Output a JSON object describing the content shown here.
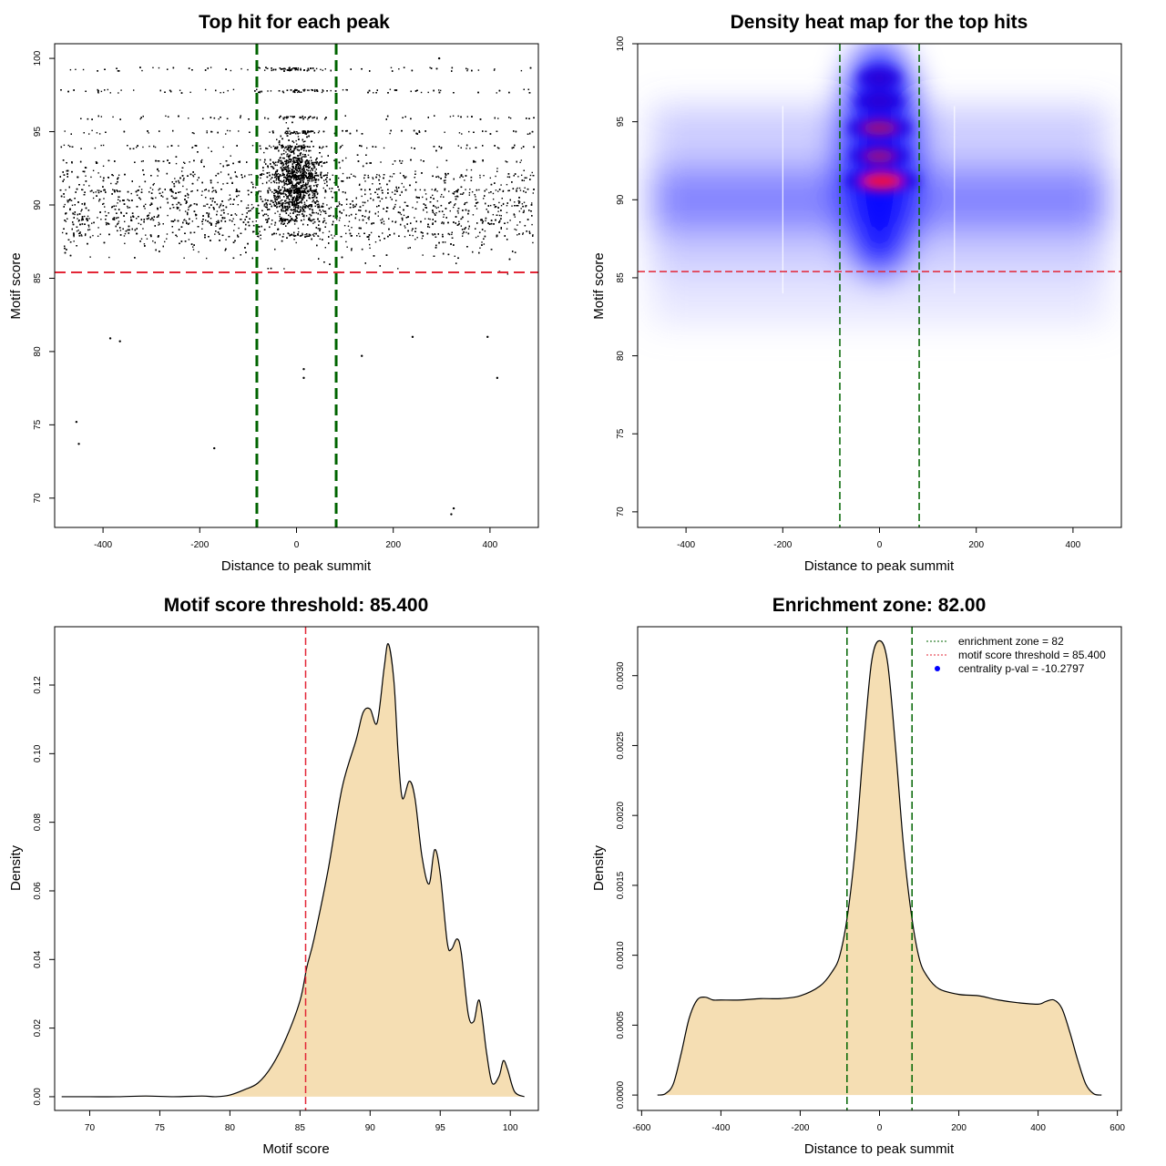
{
  "chart_data": [
    {
      "id": "scatter",
      "type": "scatter",
      "title": "Top hit for each peak",
      "xlabel": "Distance to peak summit",
      "ylabel": "Motif score",
      "xlim": [
        -500,
        500
      ],
      "ylim": [
        68,
        101
      ],
      "xticks": [
        -400,
        -200,
        0,
        200,
        400
      ],
      "yticks": [
        70,
        75,
        80,
        85,
        90,
        95,
        100
      ],
      "xtick_labels": [
        "-400",
        "-200",
        "0",
        "200",
        "400"
      ],
      "ytick_labels": [
        "70",
        "75",
        "80",
        "85",
        "90",
        "95",
        "100"
      ],
      "hline": 85.4,
      "vlines": [
        -82,
        82
      ],
      "points_sample": [
        {
          "x": -455,
          "y": 75.2
        },
        {
          "x": -450,
          "y": 73.7
        },
        {
          "x": -170,
          "y": 73.4
        },
        {
          "x": 325,
          "y": 69.3
        },
        {
          "x": 320,
          "y": 68.9
        },
        {
          "x": 15,
          "y": 78.8
        },
        {
          "x": 15,
          "y": 78.2
        },
        {
          "x": 415,
          "y": 78.2
        },
        {
          "x": 135,
          "y": 79.7
        },
        {
          "x": -365,
          "y": 80.7
        },
        {
          "x": -385,
          "y": 80.9
        },
        {
          "x": 240,
          "y": 81.0
        },
        {
          "x": 395,
          "y": 81.0
        },
        {
          "x": 295,
          "y": 100.0
        }
      ]
    },
    {
      "id": "heatmap",
      "type": "heatmap",
      "title": "Density heat map for the top hits",
      "xlabel": "Distance to peak summit",
      "ylabel": "Motif score",
      "xlim": [
        -500,
        500
      ],
      "ylim": [
        69,
        100
      ],
      "xticks": [
        -400,
        -200,
        0,
        200,
        400
      ],
      "yticks": [
        70,
        75,
        80,
        85,
        90,
        95,
        100
      ],
      "xtick_labels": [
        "-400",
        "-200",
        "0",
        "200",
        "400"
      ],
      "ytick_labels": [
        "70",
        "75",
        "80",
        "85",
        "90",
        "95",
        "100"
      ],
      "hline": 85.4,
      "vlines": [
        -82,
        82
      ],
      "hotspots": [
        {
          "x": 5,
          "y": 91.2,
          "intensity": 1.0
        },
        {
          "x": 0,
          "y": 94.6,
          "intensity": 0.8
        },
        {
          "x": 0,
          "y": 92.8,
          "intensity": 0.7
        },
        {
          "x": 0,
          "y": 96.3,
          "intensity": 0.5
        },
        {
          "x": 0,
          "y": 97.8,
          "intensity": 0.4
        }
      ],
      "colors": [
        "#ffffff",
        "#0000ff",
        "#ff0000"
      ]
    },
    {
      "id": "score_density",
      "type": "area",
      "title": "Motif score threshold: 85.400",
      "xlabel": "Motif score",
      "ylabel": "Density",
      "xlim": [
        67.5,
        102
      ],
      "ylim": [
        -0.004,
        0.137
      ],
      "xticks": [
        70,
        75,
        80,
        85,
        90,
        95,
        100
      ],
      "yticks": [
        0.0,
        0.02,
        0.04,
        0.06,
        0.08,
        0.1,
        0.12
      ],
      "xtick_labels": [
        "70",
        "75",
        "80",
        "85",
        "90",
        "95",
        "100"
      ],
      "ytick_labels": [
        "0.00",
        "0.02",
        "0.04",
        "0.06",
        "0.08",
        "0.10",
        "0.12"
      ],
      "vline": 85.4,
      "fill": "#f5deb3",
      "x": [
        68,
        70,
        72,
        74,
        76,
        78,
        79,
        80,
        81,
        82,
        83,
        84,
        85,
        85.5,
        86,
        87,
        88,
        89,
        89.5,
        90,
        90.5,
        91,
        91.3,
        91.7,
        92,
        92.3,
        92.8,
        93.2,
        93.7,
        94.2,
        94.6,
        95,
        95.5,
        95.8,
        96.2,
        96.5,
        97,
        97.4,
        97.8,
        98.3,
        98.7,
        99.2,
        99.5,
        99.8,
        100.3,
        101
      ],
      "y": [
        0.0,
        0.0,
        0.0,
        0.0002,
        0.0,
        0.0002,
        0.0,
        0.0005,
        0.002,
        0.004,
        0.009,
        0.017,
        0.028,
        0.038,
        0.046,
        0.066,
        0.09,
        0.104,
        0.112,
        0.113,
        0.109,
        0.125,
        0.132,
        0.121,
        0.1,
        0.087,
        0.092,
        0.087,
        0.07,
        0.062,
        0.072,
        0.065,
        0.045,
        0.043,
        0.046,
        0.042,
        0.024,
        0.022,
        0.028,
        0.013,
        0.004,
        0.006,
        0.0105,
        0.008,
        0.0015,
        0.0
      ]
    },
    {
      "id": "distance_density",
      "type": "area",
      "title": "Enrichment zone: 82.00",
      "xlabel": "Distance to peak summit",
      "ylabel": "Density",
      "xlim": [
        -610,
        610
      ],
      "ylim": [
        -0.00011,
        0.00335
      ],
      "xticks": [
        -600,
        -400,
        -200,
        0,
        200,
        400,
        600
      ],
      "yticks": [
        0.0,
        0.0005,
        0.001,
        0.0015,
        0.002,
        0.0025,
        0.003
      ],
      "xtick_labels": [
        "-600",
        "-400",
        "-200",
        "0",
        "200",
        "400",
        "600"
      ],
      "ytick_labels": [
        "0.0000",
        "0.0005",
        "0.0010",
        "0.0015",
        "0.0020",
        "0.0025",
        "0.0030"
      ],
      "vlines": [
        -82,
        82
      ],
      "fill": "#f5deb3",
      "x": [
        -560,
        -540,
        -520,
        -500,
        -480,
        -460,
        -440,
        -420,
        -400,
        -350,
        -300,
        -250,
        -200,
        -150,
        -120,
        -100,
        -80,
        -60,
        -40,
        -20,
        0,
        20,
        40,
        60,
        80,
        100,
        120,
        150,
        200,
        250,
        300,
        350,
        400,
        420,
        440,
        460,
        480,
        500,
        520,
        540,
        560
      ],
      "y": [
        0.0,
        1e-05,
        8e-05,
        0.0003,
        0.00055,
        0.00068,
        0.0007,
        0.00068,
        0.00068,
        0.00068,
        0.00069,
        0.00069,
        0.00071,
        0.00078,
        0.00088,
        0.001,
        0.0013,
        0.0018,
        0.0025,
        0.0031,
        0.00325,
        0.0031,
        0.0025,
        0.0018,
        0.0013,
        0.00098,
        0.00085,
        0.00076,
        0.00072,
        0.00071,
        0.00068,
        0.00066,
        0.00065,
        0.00067,
        0.00068,
        0.00062,
        0.00045,
        0.00025,
        8e-05,
        1e-05,
        0.0
      ],
      "legend": {
        "position": "top-right",
        "entries": [
          {
            "label": "enrichment zone = 82",
            "color": "#006400",
            "style": "dotted"
          },
          {
            "label": "motif score threshold = 85.400",
            "color": "#e32636",
            "style": "dotted"
          },
          {
            "label": "centrality p-val = -10.2797",
            "color": "#0000ff",
            "style": "point"
          }
        ]
      }
    }
  ]
}
